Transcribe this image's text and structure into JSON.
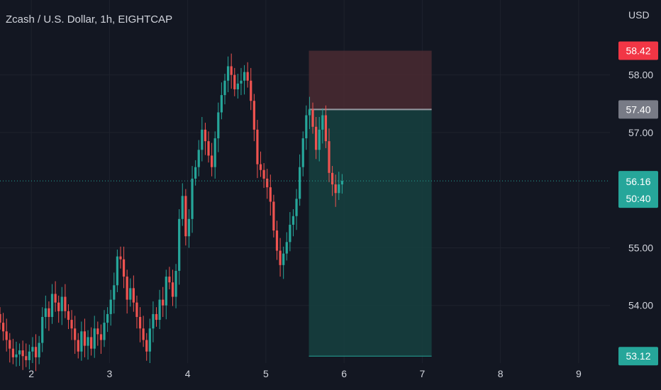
{
  "header": {
    "title": "Zcash / U.S. Dollar, 1h, EIGHTCAP",
    "currency": "USD"
  },
  "colors": {
    "background": "#131722",
    "grid": "#1e222d",
    "up": "#26a69a",
    "down": "#ef5350",
    "stop_zone": "#4a2a31",
    "target_zone": "#16413f",
    "entry_line": "#9598a1",
    "current_price": "#26a69a"
  },
  "chart_data": {
    "type": "candlestick",
    "title": "Zcash / U.S. Dollar, 1h, EIGHTCAP",
    "xlabel": "",
    "ylabel": "USD",
    "x_ticks": [
      "2",
      "3",
      "4",
      "5",
      "6",
      "7",
      "8",
      "9"
    ],
    "x_tick_days": [
      2,
      3,
      4,
      5,
      6,
      7,
      8,
      9
    ],
    "y_ticks": [
      54.0,
      55.0,
      57.0,
      58.0
    ],
    "ylim": [
      53.0,
      59.3
    ],
    "xlim_days": [
      1.6,
      9.4
    ],
    "grid": true,
    "candles_day_start": 1.6,
    "candles_per_day": 24,
    "candles_close": [
      53.7,
      53.55,
      53.4,
      53.25,
      53.1,
      53.15,
      53.22,
      53.12,
      53.05,
      53.2,
      53.28,
      53.1,
      53.35,
      53.8,
      53.95,
      53.8,
      54.2,
      54.05,
      53.9,
      54.15,
      53.9,
      53.75,
      53.6,
      53.4,
      53.2,
      53.55,
      53.3,
      53.45,
      53.25,
      53.6,
      53.5,
      53.4,
      53.7,
      53.85,
      54.1,
      54.35,
      54.85,
      54.8,
      54.5,
      54.1,
      54.3,
      54.05,
      53.8,
      53.6,
      53.4,
      53.2,
      53.6,
      53.85,
      53.75,
      54.1,
      54.0,
      54.5,
      54.4,
      54.15,
      54.6,
      55.5,
      55.9,
      55.2,
      55.5,
      56.2,
      56.4,
      56.7,
      57.05,
      56.85,
      56.6,
      56.4,
      56.9,
      57.35,
      57.65,
      57.9,
      58.15,
      58.0,
      57.75,
      57.85,
      57.9,
      58.05,
      57.9,
      57.55,
      57.05,
      56.45,
      56.35,
      56.2,
      56.05,
      55.8,
      55.3,
      54.95,
      54.7,
      54.9,
      55.1,
      55.4,
      55.55,
      55.85,
      56.4,
      56.9,
      57.3,
      57.4,
      57.1,
      56.7,
      57.05,
      57.3,
      56.85,
      56.3,
      56.1,
      55.95,
      56.1,
      56.16
    ],
    "summary_ohlc_hint": {
      "high": 58.45,
      "low": 53.0
    },
    "position": {
      "type": "long",
      "entry": 57.4,
      "stop": 58.42,
      "target": 53.12,
      "start_day": 5.55,
      "end_day": 7.12
    },
    "current_price": 56.16,
    "countdown": "50:40",
    "price_labels": [
      "58.42",
      "57.40",
      "56.16",
      "53.12"
    ]
  }
}
